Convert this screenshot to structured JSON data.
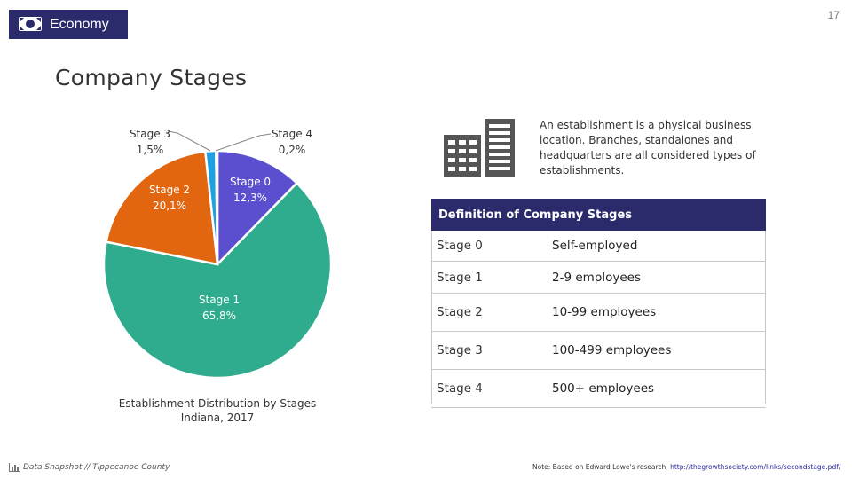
{
  "header": {
    "section": "Economy",
    "page_number": "17",
    "icon": "money-icon"
  },
  "title": "Company Stages",
  "chart_data": {
    "type": "pie",
    "title": "Establishment Distribution by Stages",
    "subtitle": "Indiana, 2017",
    "slices": [
      {
        "name": "Stage 0",
        "value": 12.3,
        "label": "12,3%",
        "color": "#5b4fcf"
      },
      {
        "name": "Stage 1",
        "value": 65.8,
        "label": "65,8%",
        "color": "#2fac8d"
      },
      {
        "name": "Stage 2",
        "value": 20.1,
        "label": "20,1%",
        "color": "#e2660f"
      },
      {
        "name": "Stage 3",
        "value": 1.5,
        "label": "1,5%",
        "color": "#1fa0e0"
      },
      {
        "name": "Stage 4",
        "value": 0.2,
        "label": "0,2%",
        "color": "#8e8e8e"
      }
    ]
  },
  "description": "An establishment is a physical business location. Branches, standalones and headquarters are all considered types of establishments.",
  "table": {
    "heading": "Definition of Company Stages",
    "rows": [
      {
        "stage": "Stage 0",
        "definition": "Self-employed"
      },
      {
        "stage": "Stage 1",
        "definition": "2-9 employees"
      },
      {
        "stage": "Stage 2",
        "definition": "10-99 employees"
      },
      {
        "stage": "Stage 3",
        "definition": "100-499 employees"
      },
      {
        "stage": "Stage 4",
        "definition": "500+ employees"
      }
    ]
  },
  "footer": {
    "source": "Data Snapshot // Tippecanoe County",
    "note": "Note: Based on Edward Lowe's research,",
    "link": "http://thegrowthsociety.com/links/secondstage.pdf/"
  }
}
